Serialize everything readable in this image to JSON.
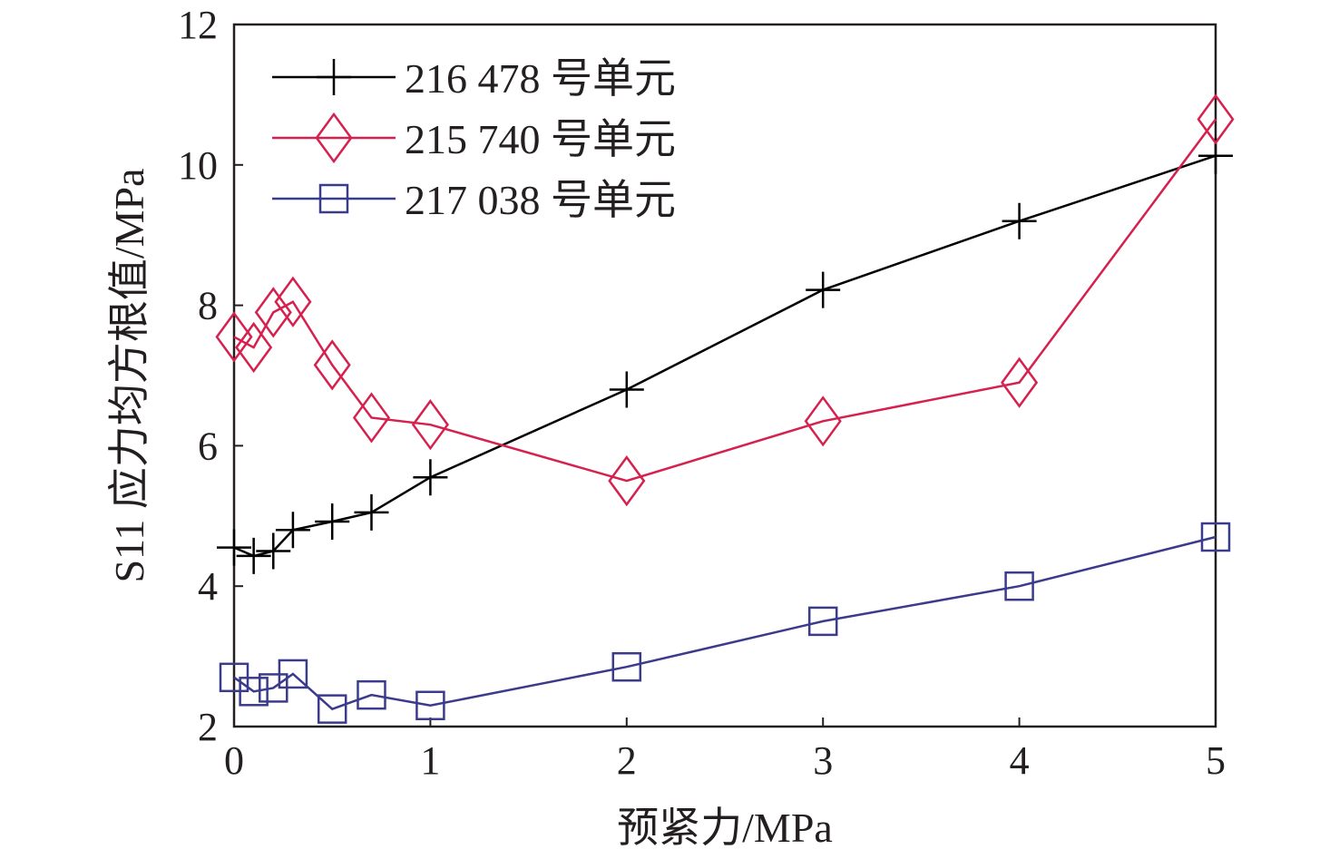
{
  "chart_data": {
    "type": "line",
    "xlabel": "预紧力/MPa",
    "ylabel": "S11 应力均方根值/MPa",
    "xlim": [
      0,
      5
    ],
    "ylim": [
      2,
      12
    ],
    "x_ticks": [
      "0",
      "1",
      "2",
      "3",
      "4",
      "5"
    ],
    "y_ticks": [
      "2",
      "4",
      "6",
      "8",
      "10",
      "12"
    ],
    "grid": false,
    "legend_position": "top-left",
    "series": [
      {
        "name": "216 478 号单元",
        "color": "#000000",
        "marker": "plus",
        "x": [
          0,
          0.1,
          0.2,
          0.3,
          0.5,
          0.7,
          1,
          2,
          3,
          4,
          5
        ],
        "y": [
          4.55,
          4.43,
          4.5,
          4.8,
          4.92,
          5.05,
          5.55,
          6.8,
          8.22,
          9.2,
          10.13
        ]
      },
      {
        "name": "215 740 号单元",
        "color": "#d6204e",
        "marker": "diamond",
        "x": [
          0,
          0.1,
          0.2,
          0.3,
          0.5,
          0.7,
          1,
          2,
          3,
          4,
          5
        ],
        "y": [
          7.55,
          7.4,
          7.9,
          8.05,
          7.15,
          6.4,
          6.3,
          5.5,
          6.35,
          6.9,
          10.65
        ]
      },
      {
        "name": "217 038 号单元",
        "color": "#3b3b8c",
        "marker": "square",
        "x": [
          0,
          0.1,
          0.2,
          0.3,
          0.5,
          0.7,
          1,
          2,
          3,
          4,
          5
        ],
        "y": [
          2.7,
          2.5,
          2.55,
          2.75,
          2.25,
          2.45,
          2.3,
          2.85,
          3.5,
          4.0,
          4.7
        ]
      }
    ]
  }
}
